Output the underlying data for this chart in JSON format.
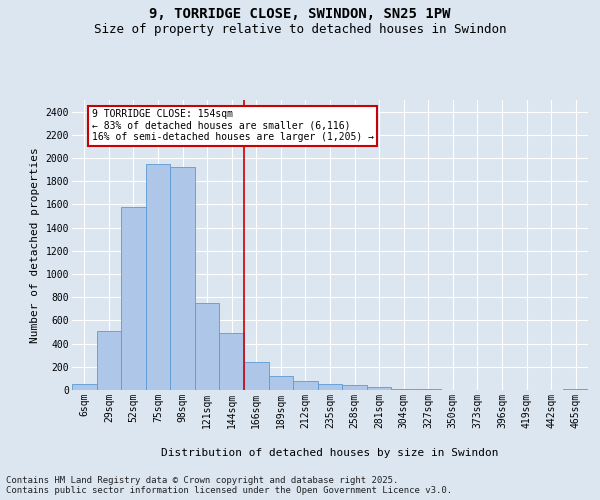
{
  "title": "9, TORRIDGE CLOSE, SWINDON, SN25 1PW",
  "subtitle": "Size of property relative to detached houses in Swindon",
  "xlabel": "Distribution of detached houses by size in Swindon",
  "ylabel": "Number of detached properties",
  "footer_line1": "Contains HM Land Registry data © Crown copyright and database right 2025.",
  "footer_line2": "Contains public sector information licensed under the Open Government Licence v3.0.",
  "categories": [
    "6sqm",
    "29sqm",
    "52sqm",
    "75sqm",
    "98sqm",
    "121sqm",
    "144sqm",
    "166sqm",
    "189sqm",
    "212sqm",
    "235sqm",
    "258sqm",
    "281sqm",
    "304sqm",
    "327sqm",
    "350sqm",
    "373sqm",
    "396sqm",
    "419sqm",
    "442sqm",
    "465sqm"
  ],
  "bar_values": [
    55,
    510,
    1580,
    1950,
    1920,
    750,
    490,
    240,
    120,
    75,
    50,
    40,
    22,
    12,
    7,
    4,
    4,
    2,
    2,
    1,
    7
  ],
  "bar_color": "#aec6e8",
  "bar_edge_color": "#5b9bd5",
  "annotation_text_line1": "9 TORRIDGE CLOSE: 154sqm",
  "annotation_text_line2": "← 83% of detached houses are smaller (6,116)",
  "annotation_text_line3": "16% of semi-detached houses are larger (1,205) →",
  "annotation_box_color": "#ffffff",
  "annotation_box_edge": "#cc0000",
  "vline_color": "#cc0000",
  "vline_x_index": 6.5,
  "ylim": [
    0,
    2500
  ],
  "yticks": [
    0,
    200,
    400,
    600,
    800,
    1000,
    1200,
    1400,
    1600,
    1800,
    2000,
    2200,
    2400
  ],
  "bg_color": "#dce6f1",
  "plot_bg_color": "#dce6f1",
  "grid_color": "#ffffff",
  "title_fontsize": 10,
  "subtitle_fontsize": 9,
  "axis_label_fontsize": 8,
  "tick_fontsize": 7,
  "annotation_fontsize": 7,
  "footer_fontsize": 6.5
}
